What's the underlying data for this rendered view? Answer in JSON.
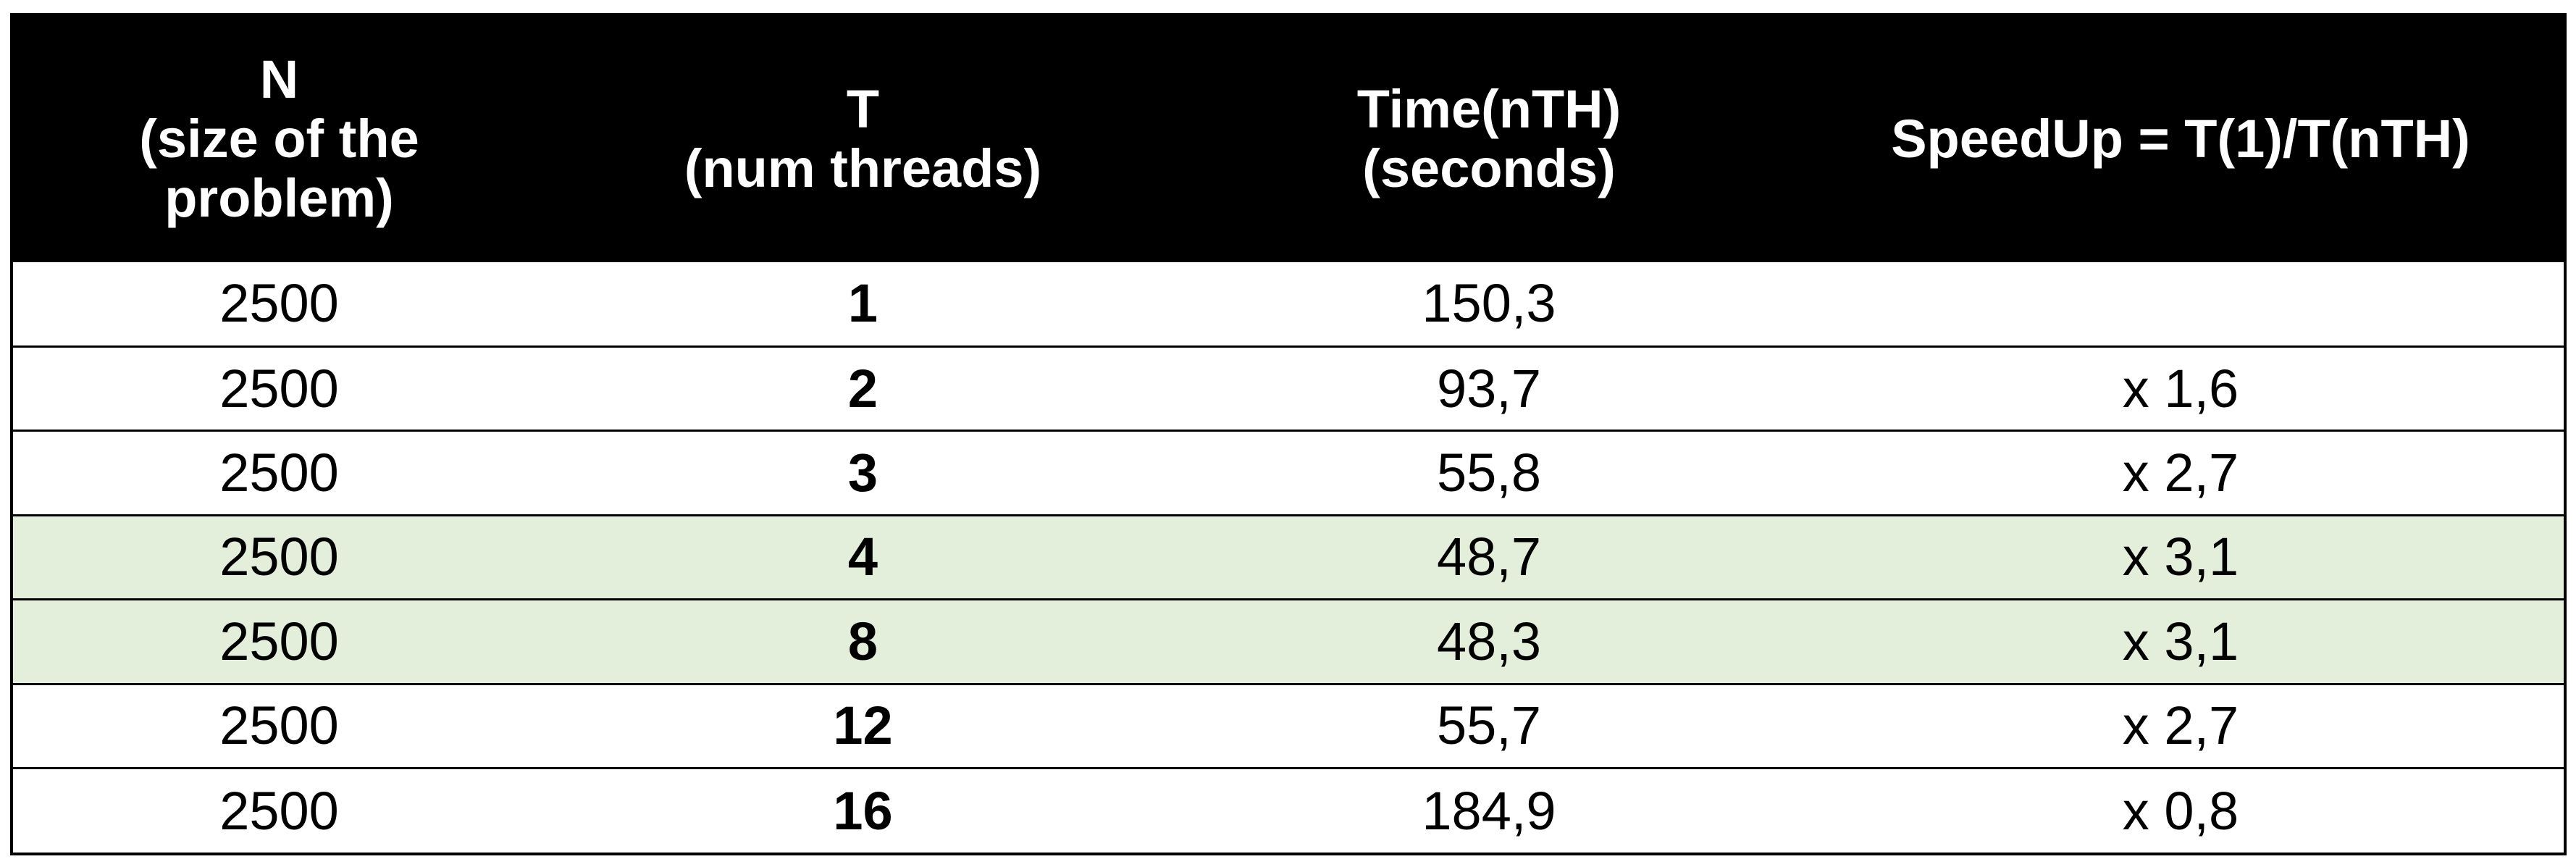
{
  "headers": [
    "N\n(size of the\nproblem)",
    "T\n(num threads)",
    "Time(nTH)\n(seconds)",
    "SpeedUp = T(1)/T(nTH)"
  ],
  "rows": [
    {
      "n": "2500",
      "threads": "1",
      "time": "150,3",
      "speedup": "",
      "highlight": false
    },
    {
      "n": "2500",
      "threads": "2",
      "time": "93,7",
      "speedup": "x 1,6",
      "highlight": false
    },
    {
      "n": "2500",
      "threads": "3",
      "time": "55,8",
      "speedup": "x 2,7",
      "highlight": false
    },
    {
      "n": "2500",
      "threads": "4",
      "time": "48,7",
      "speedup": "x 3,1",
      "highlight": true
    },
    {
      "n": "2500",
      "threads": "8",
      "time": "48,3",
      "speedup": "x 3,1",
      "highlight": true
    },
    {
      "n": "2500",
      "threads": "12",
      "time": "55,7",
      "speedup": "x 2,7",
      "highlight": false
    },
    {
      "n": "2500",
      "threads": "16",
      "time": "184,9",
      "speedup": "x 0,8",
      "highlight": false
    }
  ],
  "colors": {
    "header_bg": "#000000",
    "header_text": "#ffffff",
    "highlight_row": "#e3eedb"
  }
}
